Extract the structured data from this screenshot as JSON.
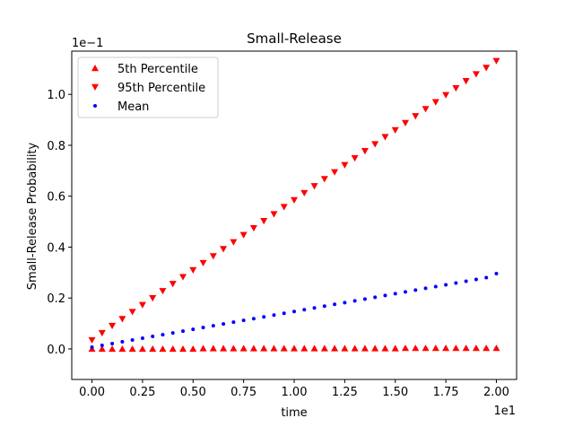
{
  "chart_data": {
    "type": "scatter",
    "title": "Small-Release",
    "xlabel": "time",
    "ylabel": "Small-Release Probability",
    "x_offset_text": "1e1",
    "y_offset_text": "1e−1",
    "xlim": [
      -1.0,
      21.0
    ],
    "ylim": [
      -0.0012,
      0.0117
    ],
    "x_ticks": [
      0,
      2.5,
      5,
      7.5,
      10,
      12.5,
      15,
      17.5,
      20
    ],
    "x_tick_labels": [
      "0.00",
      "0.25",
      "0.50",
      "0.75",
      "1.00",
      "1.25",
      "1.50",
      "1.75",
      "2.00"
    ],
    "y_ticks": [
      0,
      0.002,
      0.004,
      0.006,
      0.008,
      0.01
    ],
    "y_tick_labels": [
      "0.0",
      "0.2",
      "0.4",
      "0.6",
      "0.8",
      "1.0"
    ],
    "grid": false,
    "legend_position": "top-left",
    "x": [
      0.0,
      0.5,
      1.0,
      1.5,
      2.0,
      2.5,
      3.0,
      3.5,
      4.0,
      4.5,
      5.0,
      5.5,
      6.0,
      6.5,
      7.0,
      7.5,
      8.0,
      8.5,
      9.0,
      9.5,
      10.0,
      10.5,
      11.0,
      11.5,
      12.0,
      12.5,
      13.0,
      13.5,
      14.0,
      14.5,
      15.0,
      15.5,
      16.0,
      16.5,
      17.0,
      17.5,
      18.0,
      18.5,
      19.0,
      19.5,
      20.0
    ],
    "series": [
      {
        "name": "5th Percentile",
        "marker": "triangle-up",
        "color": "#ff0000",
        "values": [
          0.0,
          0.0,
          0.0,
          0.0,
          0.0,
          0.0,
          0.0,
          0.0,
          0.0,
          0.0,
          0.0,
          2e-05,
          2e-05,
          2e-05,
          2e-05,
          2e-05,
          2e-05,
          2e-05,
          2e-05,
          2e-05,
          2e-05,
          2e-05,
          2e-05,
          2e-05,
          2e-05,
          2e-05,
          2e-05,
          2e-05,
          2e-05,
          2e-05,
          2e-05,
          3e-05,
          3e-05,
          3e-05,
          3e-05,
          3e-05,
          3e-05,
          3e-05,
          3e-05,
          3e-05,
          3e-05
        ]
      },
      {
        "name": "95th Percentile",
        "marker": "triangle-down",
        "color": "#ff0000",
        "values": [
          0.00035,
          0.00063,
          0.00091,
          0.00118,
          0.00146,
          0.00173,
          0.002,
          0.00228,
          0.00256,
          0.00283,
          0.0031,
          0.00338,
          0.00365,
          0.00393,
          0.0042,
          0.00448,
          0.00475,
          0.00503,
          0.0053,
          0.00558,
          0.00585,
          0.00613,
          0.0064,
          0.00668,
          0.00695,
          0.00723,
          0.0075,
          0.00778,
          0.00805,
          0.00833,
          0.0086,
          0.00888,
          0.00915,
          0.00943,
          0.0097,
          0.00998,
          0.01025,
          0.01053,
          0.0108,
          0.01105,
          0.01132
        ]
      },
      {
        "name": "Mean",
        "marker": "circle",
        "color": "#0000ff",
        "values": [
          7e-05,
          0.00014,
          0.00021,
          0.00028,
          0.00035,
          0.00042,
          0.00049,
          0.00056,
          0.00063,
          0.0007,
          0.00077,
          0.00084,
          0.00091,
          0.00098,
          0.00105,
          0.00112,
          0.00119,
          0.00126,
          0.00133,
          0.0014,
          0.00147,
          0.00154,
          0.00161,
          0.00168,
          0.00175,
          0.00182,
          0.00189,
          0.00196,
          0.00203,
          0.0021,
          0.00217,
          0.00224,
          0.00231,
          0.00238,
          0.00245,
          0.00252,
          0.00259,
          0.00266,
          0.00273,
          0.0028,
          0.00296
        ]
      }
    ]
  }
}
